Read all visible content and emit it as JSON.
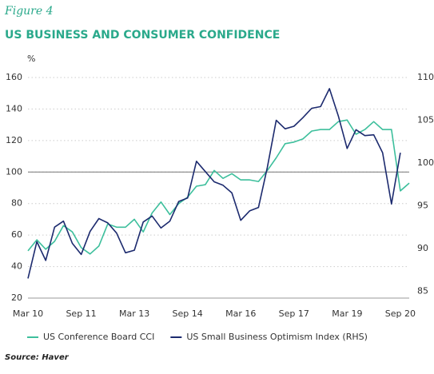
{
  "chart_data": {
    "type": "line",
    "figure_label": "Figure 4",
    "title": "US BUSINESS AND CONSUMER CONFIDENCE",
    "y_label": "%",
    "source": "Source: Haver",
    "categories": [
      "Mar 10",
      null,
      null,
      null,
      null,
      null,
      "Sep 11",
      null,
      null,
      null,
      null,
      null,
      "Mar 13",
      null,
      null,
      null,
      null,
      null,
      "Sep 14",
      null,
      null,
      null,
      null,
      null,
      "Mar 16",
      null,
      null,
      null,
      null,
      null,
      "Sep 17",
      null,
      null,
      null,
      null,
      null,
      "Mar 19",
      null,
      null,
      null,
      null,
      null,
      "Sep 20",
      null
    ],
    "series": [
      {
        "name": "US Conference Board CCI",
        "color": "#3dbf9c",
        "axis": "y",
        "values": [
          50,
          57,
          51,
          56,
          66,
          62,
          52,
          48,
          53,
          67,
          65,
          65,
          70,
          62,
          74,
          81,
          73,
          80,
          84,
          91,
          92,
          101,
          96,
          99,
          95,
          95,
          94,
          101,
          109,
          118,
          119,
          121,
          126,
          127,
          127,
          132,
          133,
          124,
          127,
          132,
          127,
          127,
          88,
          93
        ]
      },
      {
        "name": "US Small Business Optimism Index (RHS)",
        "color": "#1c2a6e",
        "axis": "y2",
        "values": [
          86.5,
          90.8,
          88.6,
          92.5,
          93.2,
          90.6,
          89.3,
          92,
          93.5,
          93,
          91.8,
          89.5,
          89.8,
          93.1,
          93.8,
          92.4,
          93.2,
          95.5,
          95.9,
          100.2,
          99,
          97.8,
          97.4,
          96.5,
          93.3,
          94.4,
          94.8,
          99.5,
          105,
          104,
          104.3,
          105.3,
          106.4,
          106.6,
          108.7,
          105.5,
          101.7,
          103.9,
          103.2,
          103.3,
          101.2,
          95.2,
          101.2,
          null
        ]
      }
    ],
    "ylim": [
      20,
      160
    ],
    "yticks": [
      20,
      40,
      60,
      80,
      100,
      120,
      140,
      160
    ],
    "y2lim": [
      84.2,
      110
    ],
    "y2ticks": [
      85,
      90,
      95,
      100,
      105,
      110
    ],
    "reference_line": 100,
    "grid": true
  }
}
